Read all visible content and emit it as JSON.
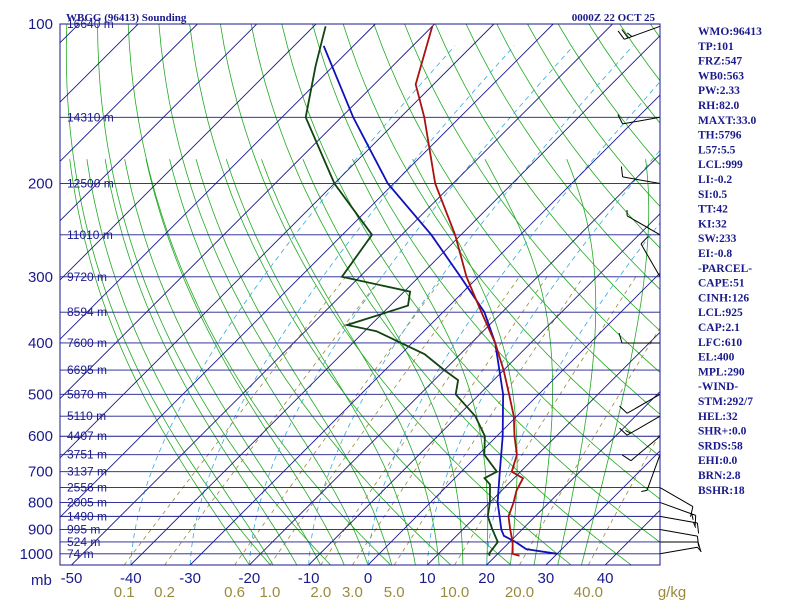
{
  "header": {
    "station": "WBGG (96413) Sounding",
    "time": "0000Z 22 OCT 25"
  },
  "indices": [
    "WMO:96413",
    "TP:101",
    "FRZ:547",
    "WB0:563",
    "PW:2.33",
    "RH:82.0",
    "MAXT:33.0",
    "TH:5796",
    "L57:5.5",
    "LCL:999",
    "LI:-0.2",
    "SI:0.5",
    "TT:42",
    "KI:32",
    "SW:233",
    "EI:-0.8",
    "-PARCEL-",
    "CAPE:51",
    "CINH:126",
    "LCL:925",
    "CAP:2.1",
    "LFC:610",
    "EL:400",
    "MPL:290",
    "-WIND-",
    "STM:292/7",
    "HEL:32",
    "SHR+:0.0",
    "SRDS:58",
    "EHI:0.0",
    "BRN:2.8",
    "BSHR:18"
  ],
  "colors": {
    "frame": "#1a1a8c",
    "isobar": "#1a1a8c",
    "isotherm": "#1a1a8c",
    "dry_adiabat": "#22aa22",
    "moist_adiabat": "#22aa22",
    "mixing_ratio": "#9a8a3a",
    "temperature": "#aa1111",
    "dewpoint": "#114411",
    "parcel": "#1111bb",
    "wind": "#000000"
  },
  "chart_data": {
    "type": "line",
    "diagram": "skew-T log-P",
    "pressure_ticks": [
      {
        "p": 100,
        "label": "100"
      },
      {
        "p": 200,
        "label": "200"
      },
      {
        "p": 300,
        "label": "300"
      },
      {
        "p": 400,
        "label": "400"
      },
      {
        "p": 500,
        "label": "500"
      },
      {
        "p": 600,
        "label": "600"
      },
      {
        "p": 700,
        "label": "700"
      },
      {
        "p": 800,
        "label": "800"
      },
      {
        "p": 900,
        "label": "900"
      },
      {
        "p": 1000,
        "label": "1000"
      }
    ],
    "pressure_unit": "mb",
    "temperature_ticks": [
      {
        "t": -50,
        "label": "-50"
      },
      {
        "t": -40,
        "label": "-40"
      },
      {
        "t": -30,
        "label": "-30"
      },
      {
        "t": -20,
        "label": "-20"
      },
      {
        "t": -10,
        "label": "-10"
      },
      {
        "t": 0,
        "label": "0"
      },
      {
        "t": 10,
        "label": "10"
      },
      {
        "t": 20,
        "label": "20"
      },
      {
        "t": 30,
        "label": "30"
      },
      {
        "t": 40,
        "label": "40"
      }
    ],
    "mixing_ratio_ticks": [
      {
        "w": 0.1,
        "label": "0.1"
      },
      {
        "w": 0.2,
        "label": "0.2"
      },
      {
        "w": 0.6,
        "label": "0.6"
      },
      {
        "w": 1.0,
        "label": "1.0"
      },
      {
        "w": 2.0,
        "label": "2.0"
      },
      {
        "w": 3.0,
        "label": "3.0"
      },
      {
        "w": 5.0,
        "label": "5.0"
      },
      {
        "w": 10.0,
        "label": "10.0"
      },
      {
        "w": 20.0,
        "label": "20.0"
      },
      {
        "w": 40.0,
        "label": "40.0"
      }
    ],
    "mixing_ratio_unit": "g/kg",
    "heights": [
      {
        "p": 100,
        "label": "16640 m"
      },
      {
        "p": 150,
        "label": "14310 m"
      },
      {
        "p": 200,
        "label": "12500 m"
      },
      {
        "p": 250,
        "label": "11010 m"
      },
      {
        "p": 300,
        "label": "9720 m"
      },
      {
        "p": 350,
        "label": "8594 m"
      },
      {
        "p": 400,
        "label": "7600 m"
      },
      {
        "p": 450,
        "label": "6695 m"
      },
      {
        "p": 500,
        "label": "5870 m"
      },
      {
        "p": 550,
        "label": "5110 m"
      },
      {
        "p": 600,
        "label": "4407 m"
      },
      {
        "p": 650,
        "label": "3751 m"
      },
      {
        "p": 700,
        "label": "3137 m"
      },
      {
        "p": 750,
        "label": "2556 m"
      },
      {
        "p": 800,
        "label": "2005 m"
      },
      {
        "p": 850,
        "label": "1490 m"
      },
      {
        "p": 900,
        "label": "995 m"
      },
      {
        "p": 950,
        "label": "524 m"
      },
      {
        "p": 1000,
        "label": "74 m"
      }
    ],
    "temperature_profile": [
      {
        "p": 1009,
        "t": 24
      },
      {
        "p": 1000,
        "t": 22.5
      },
      {
        "p": 950,
        "t": 20.5
      },
      {
        "p": 900,
        "t": 18
      },
      {
        "p": 850,
        "t": 15.5
      },
      {
        "p": 800,
        "t": 14
      },
      {
        "p": 760,
        "t": 12.5
      },
      {
        "p": 720,
        "t": 11.5
      },
      {
        "p": 700,
        "t": 8.5
      },
      {
        "p": 650,
        "t": 6.5
      },
      {
        "p": 600,
        "t": 3
      },
      {
        "p": 550,
        "t": -0.5
      },
      {
        "p": 500,
        "t": -5
      },
      {
        "p": 450,
        "t": -10
      },
      {
        "p": 400,
        "t": -16
      },
      {
        "p": 350,
        "t": -23.5
      },
      {
        "p": 300,
        "t": -32
      },
      {
        "p": 250,
        "t": -41
      },
      {
        "p": 200,
        "t": -53
      },
      {
        "p": 150,
        "t": -66
      },
      {
        "p": 130,
        "t": -73
      },
      {
        "p": 101,
        "t": -80
      }
    ],
    "dewpoint_profile": [
      {
        "p": 1009,
        "t": 19
      },
      {
        "p": 1000,
        "t": 18.5
      },
      {
        "p": 950,
        "t": 18
      },
      {
        "p": 900,
        "t": 15
      },
      {
        "p": 850,
        "t": 12
      },
      {
        "p": 800,
        "t": 10
      },
      {
        "p": 740,
        "t": 7
      },
      {
        "p": 720,
        "t": 5
      },
      {
        "p": 700,
        "t": 6
      },
      {
        "p": 650,
        "t": 1
      },
      {
        "p": 600,
        "t": -2
      },
      {
        "p": 550,
        "t": -7
      },
      {
        "p": 500,
        "t": -14
      },
      {
        "p": 470,
        "t": -16
      },
      {
        "p": 450,
        "t": -20
      },
      {
        "p": 420,
        "t": -26
      },
      {
        "p": 380,
        "t": -38
      },
      {
        "p": 370,
        "t": -44
      },
      {
        "p": 340,
        "t": -37
      },
      {
        "p": 320,
        "t": -39
      },
      {
        "p": 300,
        "t": -53
      },
      {
        "p": 250,
        "t": -55
      },
      {
        "p": 200,
        "t": -70
      },
      {
        "p": 150,
        "t": -86
      },
      {
        "p": 120,
        "t": -93
      },
      {
        "p": 101,
        "t": -98
      }
    ],
    "parcel_profile": [
      {
        "p": 1000,
        "t": 30
      },
      {
        "p": 980,
        "t": 24
      },
      {
        "p": 950,
        "t": 21
      },
      {
        "p": 925,
        "t": 18
      },
      {
        "p": 900,
        "t": 16.5
      },
      {
        "p": 850,
        "t": 14
      },
      {
        "p": 800,
        "t": 11.3
      },
      {
        "p": 700,
        "t": 6.5
      },
      {
        "p": 600,
        "t": 1
      },
      {
        "p": 500,
        "t": -6
      },
      {
        "p": 400,
        "t": -16
      },
      {
        "p": 350,
        "t": -23
      },
      {
        "p": 300,
        "t": -33
      },
      {
        "p": 250,
        "t": -45
      },
      {
        "p": 200,
        "t": -61
      },
      {
        "p": 150,
        "t": -78
      },
      {
        "p": 110,
        "t": -95
      }
    ],
    "wind_profile": [
      {
        "p": 101,
        "dir": 250,
        "spd": 25
      },
      {
        "p": 150,
        "dir": 260,
        "spd": 10
      },
      {
        "p": 200,
        "dir": 280,
        "spd": 10
      },
      {
        "p": 250,
        "dir": 300,
        "spd": 5
      },
      {
        "p": 300,
        "dir": 330,
        "spd": 10
      },
      {
        "p": 400,
        "dir": 270,
        "spd": 10
      },
      {
        "p": 500,
        "dir": 240,
        "spd": 10
      },
      {
        "p": 550,
        "dir": 240,
        "spd": 15
      },
      {
        "p": 600,
        "dir": 230,
        "spd": 10
      },
      {
        "p": 650,
        "dir": 200,
        "spd": 5
      },
      {
        "p": 750,
        "dir": 120,
        "spd": 10
      },
      {
        "p": 800,
        "dir": 110,
        "spd": 15
      },
      {
        "p": 850,
        "dir": 100,
        "spd": 15
      },
      {
        "p": 900,
        "dir": 100,
        "spd": 10
      },
      {
        "p": 950,
        "dir": 90,
        "spd": 10
      },
      {
        "p": 1000,
        "dir": 80,
        "spd": 5
      }
    ]
  }
}
